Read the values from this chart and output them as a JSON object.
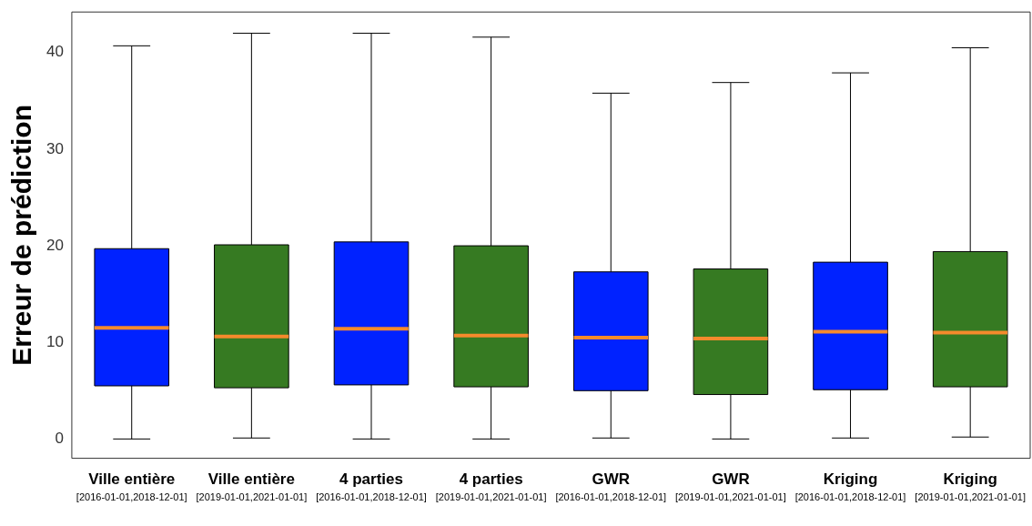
{
  "chart_data": {
    "type": "box",
    "ylabel": "Erreur de prédiction",
    "categories": [
      "Ville entière\n[2016-01-01,2018-12-01]",
      "Ville entière\n[2019-01-01,2021-01-01]",
      "4 parties\n[2016-01-01,2018-12-01]",
      "4 parties\n[2019-01-01,2021-01-01]",
      "GWR\n[2016-01-01,2018-12-01]",
      "GWR\n[2019-01-01,2021-01-01]",
      "Kriging\n[2016-01-01,2018-12-01]",
      "Kriging\n[2019-01-01,2021-01-01]"
    ],
    "colors": [
      "#0022ff",
      "#367a22",
      "#0022ff",
      "#367a22",
      "#0022ff",
      "#367a22",
      "#0022ff",
      "#367a22"
    ],
    "boxes": [
      {
        "low": 0,
        "q1": 5.5,
        "median": 11.5,
        "q3": 19.7,
        "high": 40.7
      },
      {
        "low": 0.1,
        "q1": 5.3,
        "median": 10.6,
        "q3": 20.1,
        "high": 42.0
      },
      {
        "low": 0,
        "q1": 5.6,
        "median": 11.4,
        "q3": 20.4,
        "high": 42.0
      },
      {
        "low": 0,
        "q1": 5.4,
        "median": 10.7,
        "q3": 20.0,
        "high": 41.6
      },
      {
        "low": 0.1,
        "q1": 5.0,
        "median": 10.5,
        "q3": 17.3,
        "high": 35.8
      },
      {
        "low": 0,
        "q1": 4.6,
        "median": 10.4,
        "q3": 17.6,
        "high": 36.9
      },
      {
        "low": 0.1,
        "q1": 5.1,
        "median": 11.1,
        "q3": 18.3,
        "high": 37.9
      },
      {
        "low": 0.2,
        "q1": 5.4,
        "median": 11.0,
        "q3": 19.4,
        "high": 40.5
      }
    ],
    "ylim": [
      -2,
      44.2
    ],
    "yticks": [
      0,
      10,
      20,
      30,
      40
    ],
    "grid": false,
    "legend": false
  }
}
